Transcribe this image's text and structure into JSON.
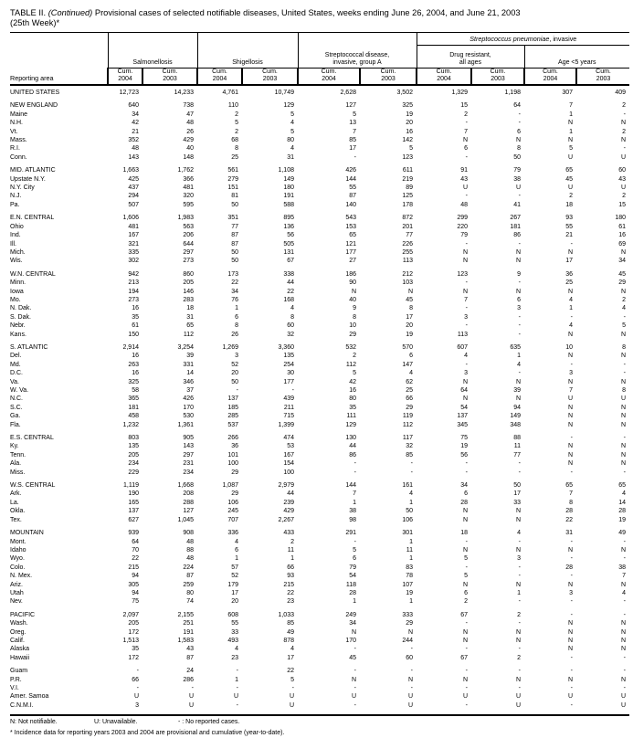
{
  "title": {
    "prefix": "TABLE II.",
    "continued": "(Continued)",
    "rest": "Provisional cases of selected notifiable diseases, United States, weeks ending June 26, 2004, and June 21, 2003",
    "line2": "(25th Week)*"
  },
  "header": {
    "reporting_area_label": "Reporting area",
    "super_group": {
      "italic": "Streptococcus pneumoniae",
      "rest": ", invasive"
    },
    "groups": [
      {
        "line1": "Salmonellosis",
        "line2": ""
      },
      {
        "line1": "Shigellosis",
        "line2": ""
      },
      {
        "line1": "Streptococcal disease,",
        "line2": "invasive, group A"
      },
      {
        "line1": "Drug resistant,",
        "line2": "all ages"
      },
      {
        "line1": "Age <5 years",
        "line2": ""
      }
    ],
    "cum_label": "Cum.",
    "years": [
      "2004",
      "2003",
      "2004",
      "2003",
      "2004",
      "2003",
      "2004",
      "2003",
      "2004",
      "2003"
    ]
  },
  "table": {
    "sections": [
      {
        "rows": [
          [
            "UNITED STATES",
            "12,723",
            "14,233",
            "4,761",
            "10,749",
            "2,628",
            "3,502",
            "1,329",
            "1,198",
            "307",
            "409"
          ]
        ]
      },
      {
        "rows": [
          [
            "NEW ENGLAND",
            "640",
            "738",
            "110",
            "129",
            "127",
            "325",
            "15",
            "64",
            "7",
            "2"
          ],
          [
            "Maine",
            "34",
            "47",
            "2",
            "5",
            "5",
            "19",
            "2",
            "-",
            "1",
            "-"
          ],
          [
            "N.H.",
            "42",
            "48",
            "5",
            "4",
            "13",
            "20",
            "-",
            "-",
            "N",
            "N"
          ],
          [
            "Vt.",
            "21",
            "26",
            "2",
            "5",
            "7",
            "16",
            "7",
            "6",
            "1",
            "2"
          ],
          [
            "Mass.",
            "352",
            "429",
            "68",
            "80",
            "85",
            "142",
            "N",
            "N",
            "N",
            "N"
          ],
          [
            "R.I.",
            "48",
            "40",
            "8",
            "4",
            "17",
            "5",
            "6",
            "8",
            "5",
            "-"
          ],
          [
            "Conn.",
            "143",
            "148",
            "25",
            "31",
            "-",
            "123",
            "-",
            "50",
            "U",
            "U"
          ]
        ]
      },
      {
        "rows": [
          [
            "MID. ATLANTIC",
            "1,663",
            "1,762",
            "561",
            "1,108",
            "426",
            "611",
            "91",
            "79",
            "65",
            "60"
          ],
          [
            "Upstate N.Y.",
            "425",
            "366",
            "279",
            "149",
            "144",
            "219",
            "43",
            "38",
            "45",
            "43"
          ],
          [
            "N.Y. City",
            "437",
            "481",
            "151",
            "180",
            "55",
            "89",
            "U",
            "U",
            "U",
            "U"
          ],
          [
            "N.J.",
            "294",
            "320",
            "81",
            "191",
            "87",
            "125",
            "-",
            "-",
            "2",
            "2"
          ],
          [
            "Pa.",
            "507",
            "595",
            "50",
            "588",
            "140",
            "178",
            "48",
            "41",
            "18",
            "15"
          ]
        ]
      },
      {
        "rows": [
          [
            "E.N. CENTRAL",
            "1,606",
            "1,983",
            "351",
            "895",
            "543",
            "872",
            "299",
            "267",
            "93",
            "180"
          ],
          [
            "Ohio",
            "481",
            "563",
            "77",
            "136",
            "153",
            "201",
            "220",
            "181",
            "55",
            "61"
          ],
          [
            "Ind.",
            "167",
            "206",
            "87",
            "56",
            "65",
            "77",
            "79",
            "86",
            "21",
            "16"
          ],
          [
            "Ill.",
            "321",
            "644",
            "87",
            "505",
            "121",
            "226",
            "-",
            "-",
            "-",
            "69"
          ],
          [
            "Mich.",
            "335",
            "297",
            "50",
            "131",
            "177",
            "255",
            "N",
            "N",
            "N",
            "N"
          ],
          [
            "Wis.",
            "302",
            "273",
            "50",
            "67",
            "27",
            "113",
            "N",
            "N",
            "17",
            "34"
          ]
        ]
      },
      {
        "rows": [
          [
            "W.N. CENTRAL",
            "942",
            "860",
            "173",
            "338",
            "186",
            "212",
            "123",
            "9",
            "36",
            "45"
          ],
          [
            "Minn.",
            "213",
            "205",
            "22",
            "44",
            "90",
            "103",
            "-",
            "-",
            "25",
            "29"
          ],
          [
            "Iowa",
            "194",
            "146",
            "34",
            "22",
            "N",
            "N",
            "N",
            "N",
            "N",
            "N"
          ],
          [
            "Mo.",
            "273",
            "283",
            "76",
            "168",
            "40",
            "45",
            "7",
            "6",
            "4",
            "2"
          ],
          [
            "N. Dak.",
            "16",
            "18",
            "1",
            "4",
            "9",
            "8",
            "-",
            "3",
            "1",
            "4"
          ],
          [
            "S. Dak.",
            "35",
            "31",
            "6",
            "8",
            "8",
            "17",
            "3",
            "-",
            "-",
            "-"
          ],
          [
            "Nebr.",
            "61",
            "65",
            "8",
            "60",
            "10",
            "20",
            "-",
            "-",
            "4",
            "5"
          ],
          [
            "Kans.",
            "150",
            "112",
            "26",
            "32",
            "29",
            "19",
            "113",
            "-",
            "N",
            "N"
          ]
        ]
      },
      {
        "rows": [
          [
            "S. ATLANTIC",
            "2,914",
            "3,254",
            "1,269",
            "3,360",
            "532",
            "570",
            "607",
            "635",
            "10",
            "8"
          ],
          [
            "Del.",
            "16",
            "39",
            "3",
            "135",
            "2",
            "6",
            "4",
            "1",
            "N",
            "N"
          ],
          [
            "Md.",
            "263",
            "331",
            "52",
            "254",
            "112",
            "147",
            "-",
            "4",
            "-",
            "-"
          ],
          [
            "D.C.",
            "16",
            "14",
            "20",
            "30",
            "5",
            "4",
            "3",
            "-",
            "3",
            "-"
          ],
          [
            "Va.",
            "325",
            "346",
            "50",
            "177",
            "42",
            "62",
            "N",
            "N",
            "N",
            "N"
          ],
          [
            "W. Va.",
            "58",
            "37",
            "-",
            "-",
            "16",
            "25",
            "64",
            "39",
            "7",
            "8"
          ],
          [
            "N.C.",
            "365",
            "426",
            "137",
            "439",
            "80",
            "66",
            "N",
            "N",
            "U",
            "U"
          ],
          [
            "S.C.",
            "181",
            "170",
            "185",
            "211",
            "35",
            "29",
            "54",
            "94",
            "N",
            "N"
          ],
          [
            "Ga.",
            "458",
            "530",
            "285",
            "715",
            "111",
            "119",
            "137",
            "149",
            "N",
            "N"
          ],
          [
            "Fla.",
            "1,232",
            "1,361",
            "537",
            "1,399",
            "129",
            "112",
            "345",
            "348",
            "N",
            "N"
          ]
        ]
      },
      {
        "rows": [
          [
            "E.S. CENTRAL",
            "803",
            "905",
            "266",
            "474",
            "130",
            "117",
            "75",
            "88",
            "-",
            "-"
          ],
          [
            "Ky.",
            "135",
            "143",
            "36",
            "53",
            "44",
            "32",
            "19",
            "11",
            "N",
            "N"
          ],
          [
            "Tenn.",
            "205",
            "297",
            "101",
            "167",
            "86",
            "85",
            "56",
            "77",
            "N",
            "N"
          ],
          [
            "Ala.",
            "234",
            "231",
            "100",
            "154",
            "-",
            "-",
            "-",
            "-",
            "N",
            "N"
          ],
          [
            "Miss.",
            "229",
            "234",
            "29",
            "100",
            "-",
            "-",
            "-",
            "-",
            "-",
            "-"
          ]
        ]
      },
      {
        "rows": [
          [
            "W.S. CENTRAL",
            "1,119",
            "1,668",
            "1,087",
            "2,979",
            "144",
            "161",
            "34",
            "50",
            "65",
            "65"
          ],
          [
            "Ark.",
            "190",
            "208",
            "29",
            "44",
            "7",
            "4",
            "6",
            "17",
            "7",
            "4"
          ],
          [
            "La.",
            "165",
            "288",
            "106",
            "239",
            "1",
            "1",
            "28",
            "33",
            "8",
            "14"
          ],
          [
            "Okla.",
            "137",
            "127",
            "245",
            "429",
            "38",
            "50",
            "N",
            "N",
            "28",
            "28"
          ],
          [
            "Tex.",
            "627",
            "1,045",
            "707",
            "2,267",
            "98",
            "106",
            "N",
            "N",
            "22",
            "19"
          ]
        ]
      },
      {
        "rows": [
          [
            "MOUNTAIN",
            "939",
            "908",
            "336",
            "433",
            "291",
            "301",
            "18",
            "4",
            "31",
            "49"
          ],
          [
            "Mont.",
            "64",
            "48",
            "4",
            "2",
            "-",
            "1",
            "-",
            "-",
            "-",
            "-"
          ],
          [
            "Idaho",
            "70",
            "88",
            "6",
            "11",
            "5",
            "11",
            "N",
            "N",
            "N",
            "N"
          ],
          [
            "Wyo.",
            "22",
            "48",
            "1",
            "1",
            "6",
            "1",
            "5",
            "3",
            "-",
            "-"
          ],
          [
            "Colo.",
            "215",
            "224",
            "57",
            "66",
            "79",
            "83",
            "-",
            "-",
            "28",
            "38"
          ],
          [
            "N. Mex.",
            "94",
            "87",
            "52",
            "93",
            "54",
            "78",
            "5",
            "-",
            "-",
            "7"
          ],
          [
            "Ariz.",
            "305",
            "259",
            "179",
            "215",
            "118",
            "107",
            "N",
            "N",
            "N",
            "N"
          ],
          [
            "Utah",
            "94",
            "80",
            "17",
            "22",
            "28",
            "19",
            "6",
            "1",
            "3",
            "4"
          ],
          [
            "Nev.",
            "75",
            "74",
            "20",
            "23",
            "1",
            "1",
            "2",
            "-",
            "-",
            "-"
          ]
        ]
      },
      {
        "rows": [
          [
            "PACIFIC",
            "2,097",
            "2,155",
            "608",
            "1,033",
            "249",
            "333",
            "67",
            "2",
            "-",
            "-"
          ],
          [
            "Wash.",
            "205",
            "251",
            "55",
            "85",
            "34",
            "29",
            "-",
            "-",
            "N",
            "N"
          ],
          [
            "Oreg.",
            "172",
            "191",
            "33",
            "49",
            "N",
            "N",
            "N",
            "N",
            "N",
            "N"
          ],
          [
            "Calif.",
            "1,513",
            "1,583",
            "493",
            "878",
            "170",
            "244",
            "N",
            "N",
            "N",
            "N"
          ],
          [
            "Alaska",
            "35",
            "43",
            "4",
            "4",
            "-",
            "-",
            "-",
            "-",
            "N",
            "N"
          ],
          [
            "Hawaii",
            "172",
            "87",
            "23",
            "17",
            "45",
            "60",
            "67",
            "2",
            "-",
            "-"
          ]
        ]
      },
      {
        "rows": [
          [
            "Guam",
            "-",
            "24",
            "-",
            "22",
            "-",
            "-",
            "-",
            "-",
            "-",
            "-"
          ],
          [
            "P.R.",
            "66",
            "286",
            "1",
            "5",
            "N",
            "N",
            "N",
            "N",
            "N",
            "N"
          ],
          [
            "V.I.",
            "-",
            "-",
            "-",
            "-",
            "-",
            "-",
            "-",
            "-",
            "-",
            "-"
          ],
          [
            "Amer. Samoa",
            "U",
            "U",
            "U",
            "U",
            "U",
            "U",
            "U",
            "U",
            "U",
            "U"
          ],
          [
            "C.N.M.I.",
            "3",
            "U",
            "-",
            "U",
            "-",
            "U",
            "-",
            "U",
            "-",
            "U"
          ]
        ]
      }
    ]
  },
  "footnotes": {
    "n": "N: Not notifiable.",
    "u": "U: Unavailable.",
    "dash": "- : No reported cases.",
    "note": "* Incidence data for reporting years 2003 and 2004 are provisional and cumulative (year-to-date)."
  }
}
